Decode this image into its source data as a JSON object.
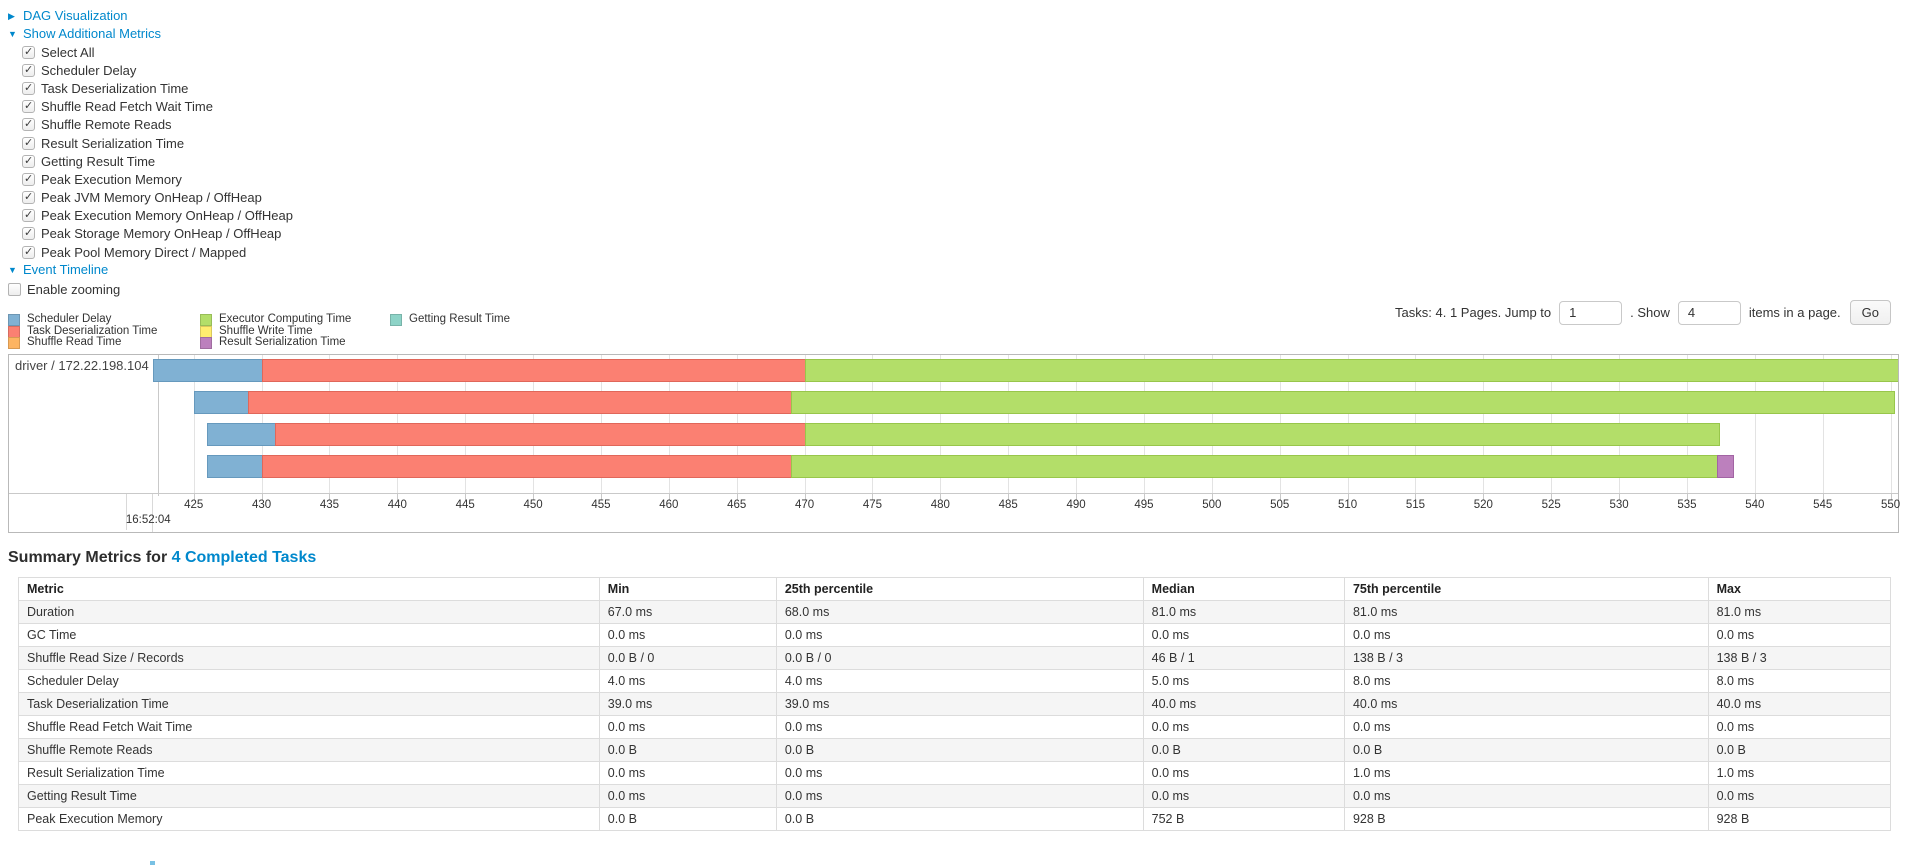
{
  "controls": {
    "dag": {
      "label": "DAG Visualization"
    },
    "metrics": {
      "label": "Show Additional Metrics",
      "items": [
        "Select All",
        "Scheduler Delay",
        "Task Deserialization Time",
        "Shuffle Read Fetch Wait Time",
        "Shuffle Remote Reads",
        "Result Serialization Time",
        "Getting Result Time",
        "Peak Execution Memory",
        "Peak JVM Memory OnHeap / OffHeap",
        "Peak Execution Memory OnHeap / OffHeap",
        "Peak Storage Memory OnHeap / OffHeap",
        "Peak Pool Memory Direct / Mapped"
      ]
    },
    "timeline": {
      "label": "Event Timeline",
      "enable_zooming": "Enable zooming"
    }
  },
  "legend": {
    "columns": [
      [
        {
          "label": "Scheduler Delay",
          "color": "#80B1D3"
        },
        {
          "label": "Task Deserialization Time",
          "color": "#FB8072"
        },
        {
          "label": "Shuffle Read Time",
          "color": "#FDB462"
        }
      ],
      [
        {
          "label": "Executor Computing Time",
          "color": "#B3DE69"
        },
        {
          "label": "Shuffle Write Time",
          "color": "#FFED6F"
        },
        {
          "label": "Result Serialization Time",
          "color": "#BC80BD"
        }
      ],
      [
        {
          "label": "Getting Result Time",
          "color": "#8DD3C7"
        }
      ]
    ]
  },
  "pagination": {
    "tasks_text": "Tasks: 4. 1 Pages. Jump to",
    "jump_value": "1",
    "show_label": ". Show",
    "show_value": "4",
    "items_label": "items in a page.",
    "go_label": "Go"
  },
  "chart_data": {
    "type": "timeline",
    "group_label": "driver / 172.22.198.104",
    "axis": {
      "unit": "ms",
      "domain": [
        422,
        550.55
      ],
      "tick_start": 425,
      "tick_end": 550,
      "tick_step": 5,
      "major_tick": {
        "value": 420,
        "label": "16:52:04"
      }
    },
    "colors": {
      "scheduler_delay": {
        "fill": "#80B1D3",
        "border": "#6699bd"
      },
      "task_deserialization": {
        "fill": "#FB8072",
        "border": "#e0675a"
      },
      "shuffle_read": {
        "fill": "#FDB462",
        "border": "#e09a47"
      },
      "executor_computing": {
        "fill": "#B3DE69",
        "border": "#98c64b"
      },
      "shuffle_write": {
        "fill": "#FFED6F",
        "border": "#e3d052"
      },
      "result_serialization": {
        "fill": "#BC80BD",
        "border": "#a264a3"
      },
      "getting_result": {
        "fill": "#8DD3C7",
        "border": "#6fbbae"
      }
    },
    "tasks": [
      {
        "segments": [
          {
            "type": "scheduler_delay",
            "start": 422,
            "end": 430
          },
          {
            "type": "task_deserialization",
            "start": 430,
            "end": 470
          },
          {
            "type": "executor_computing",
            "start": 470,
            "end": 550.55
          }
        ]
      },
      {
        "segments": [
          {
            "type": "scheduler_delay",
            "start": 425,
            "end": 429
          },
          {
            "type": "task_deserialization",
            "start": 429,
            "end": 469
          },
          {
            "type": "executor_computing",
            "start": 469,
            "end": 550.2
          }
        ]
      },
      {
        "segments": [
          {
            "type": "scheduler_delay",
            "start": 426,
            "end": 431
          },
          {
            "type": "task_deserialization",
            "start": 431,
            "end": 470
          },
          {
            "type": "executor_computing",
            "start": 470,
            "end": 537.3
          }
        ]
      },
      {
        "segments": [
          {
            "type": "scheduler_delay",
            "start": 426,
            "end": 430
          },
          {
            "type": "task_deserialization",
            "start": 430,
            "end": 469
          },
          {
            "type": "executor_computing",
            "start": 469,
            "end": 537.2
          },
          {
            "type": "result_serialization",
            "start": 537.2,
            "end": 538.3
          }
        ]
      }
    ]
  },
  "summary": {
    "title_prefix": "Summary Metrics for ",
    "title_link": "4 Completed Tasks",
    "columns": [
      "Metric",
      "Min",
      "25th percentile",
      "Median",
      "75th percentile",
      "Max"
    ],
    "rows": [
      [
        "Duration",
        "67.0 ms",
        "68.0 ms",
        "81.0 ms",
        "81.0 ms",
        "81.0 ms"
      ],
      [
        "GC Time",
        "0.0 ms",
        "0.0 ms",
        "0.0 ms",
        "0.0 ms",
        "0.0 ms"
      ],
      [
        "Shuffle Read Size / Records",
        "0.0 B / 0",
        "0.0 B / 0",
        "46 B / 1",
        "138 B / 3",
        "138 B / 3"
      ],
      [
        "Scheduler Delay",
        "4.0 ms",
        "4.0 ms",
        "5.0 ms",
        "8.0 ms",
        "8.0 ms"
      ],
      [
        "Task Deserialization Time",
        "39.0 ms",
        "39.0 ms",
        "40.0 ms",
        "40.0 ms",
        "40.0 ms"
      ],
      [
        "Shuffle Read Fetch Wait Time",
        "0.0 ms",
        "0.0 ms",
        "0.0 ms",
        "0.0 ms",
        "0.0 ms"
      ],
      [
        "Shuffle Remote Reads",
        "0.0 B",
        "0.0 B",
        "0.0 B",
        "0.0 B",
        "0.0 B"
      ],
      [
        "Result Serialization Time",
        "0.0 ms",
        "0.0 ms",
        "0.0 ms",
        "1.0 ms",
        "1.0 ms"
      ],
      [
        "Getting Result Time",
        "0.0 ms",
        "0.0 ms",
        "0.0 ms",
        "0.0 ms",
        "0.0 ms"
      ],
      [
        "Peak Execution Memory",
        "0.0 B",
        "0.0 B",
        "752 B",
        "928 B",
        "928 B"
      ]
    ]
  }
}
